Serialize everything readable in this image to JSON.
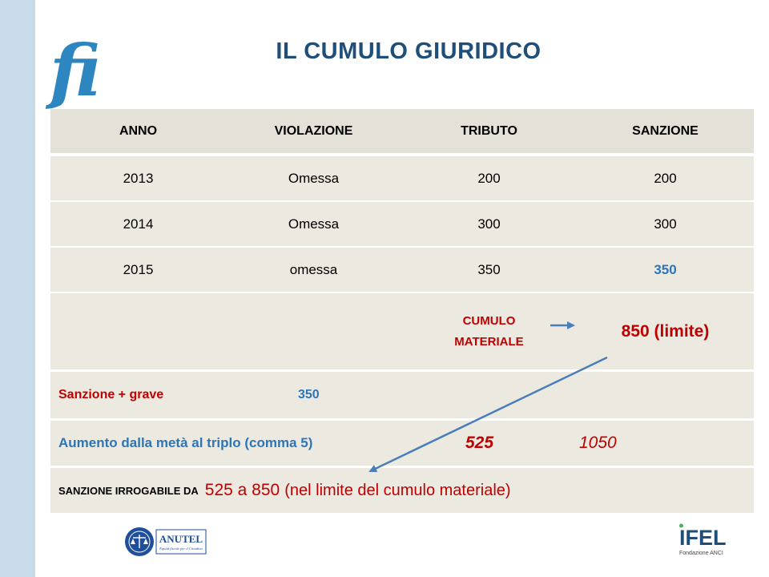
{
  "slide": {
    "title": "IL CUMULO GIURIDICO",
    "logo_left_glyph": "fi",
    "accent_blue": "#2e75b6",
    "accent_red": "#c00000",
    "sidebar_color": "#c9daea"
  },
  "table": {
    "headers": [
      "ANNO",
      "VIOLAZIONE",
      "TRIBUTO",
      "SANZIONE"
    ],
    "rows": [
      [
        "2013",
        "Omessa",
        "200",
        "200"
      ],
      [
        "2014",
        "Omessa",
        "300",
        "300"
      ],
      [
        "2015",
        "omessa",
        "350",
        "350"
      ]
    ],
    "cumulo_label_line1": "CUMULO",
    "cumulo_label_line2": "MATERIALE",
    "cumulo_value": "850 (limite)",
    "sanzione_grave_label": "Sanzione + grave",
    "sanzione_grave_value": "350",
    "aumento_label": "Aumento dalla metà al triplo (comma 5)",
    "aumento_min": "525",
    "aumento_max": "1050",
    "irrogabile_label": "SANZIONE IRROGABILE DA",
    "irrogabile_range": "525 a 850",
    "irrogabile_note": "(nel limite del cumulo materiale)"
  },
  "footer": {
    "logo_left": "ANUTEL",
    "logo_left_tagline": "Equità fiscale per il Cittadino",
    "logo_right": "IFEL",
    "logo_right_subtitle": "Fondazione ANCI"
  }
}
